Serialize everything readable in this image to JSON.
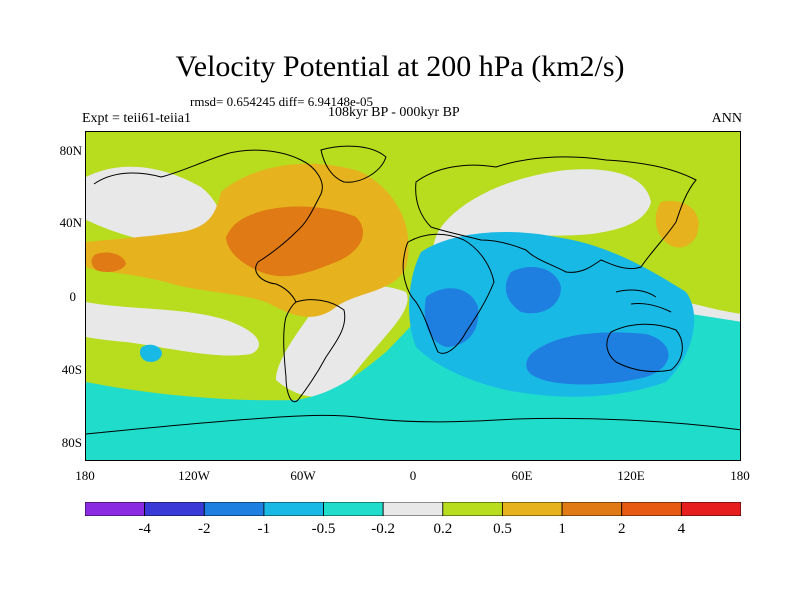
{
  "title": "Velocity Potential at 200 hPa (km2/s)",
  "stats": "rmsd= 0.654245 diff= 6.94148e-05",
  "experiment": "Expt = teii61-teiia1",
  "period": "108kyr BP - 000kyr BP",
  "season": "ANN",
  "lat_ticks": [
    "80N",
    "40N",
    "0",
    "40S",
    "80S"
  ],
  "lon_ticks": [
    "180",
    "120W",
    "60W",
    "0",
    "60E",
    "120E",
    "180"
  ],
  "colorbar": {
    "colors": [
      "#8a2be2",
      "#3a3ad6",
      "#1e7fe0",
      "#19b9e6",
      "#1fdccb",
      "#e8e8e8",
      "#b8dc1e",
      "#e6b21e",
      "#e07a14",
      "#e65a14",
      "#e61e1e"
    ],
    "labels": [
      "-4",
      "-2",
      "-1",
      "-0.5",
      "-0.2",
      "0.2",
      "0.5",
      "1",
      "2",
      "4"
    ]
  },
  "map_colors": {
    "gt2": "#e07a14",
    "gt1": "#e6b21e",
    "gt05": "#b8dc1e",
    "near0": "#e8e8e8",
    "lt02": "#1fdccb",
    "lt05": "#19b9e6",
    "lt1": "#1e7fe0"
  }
}
